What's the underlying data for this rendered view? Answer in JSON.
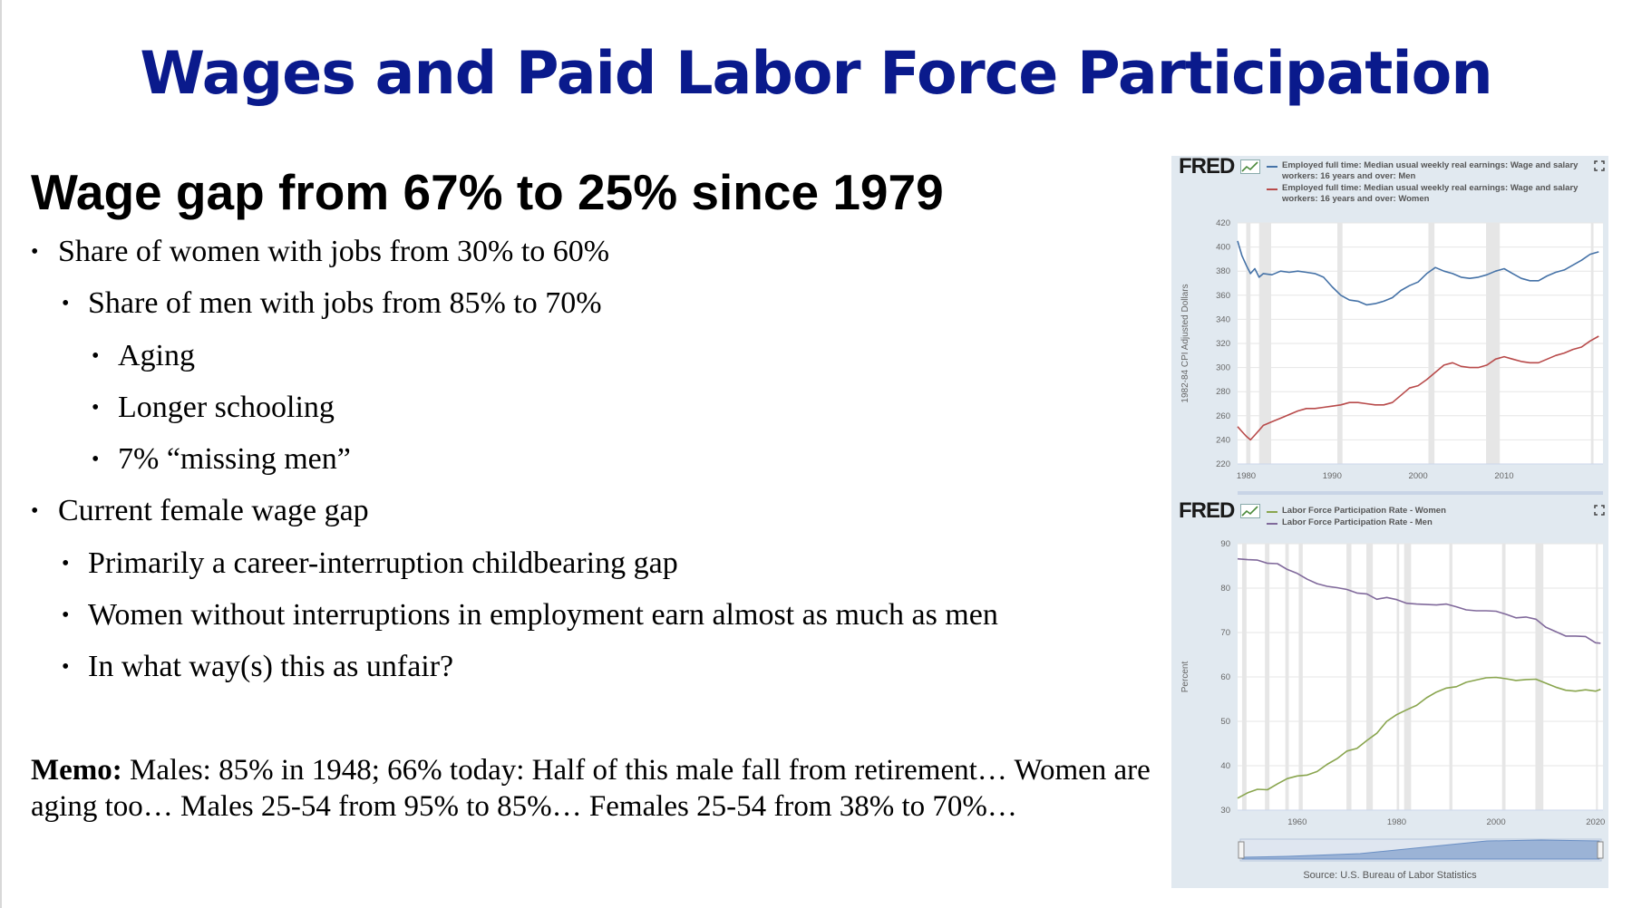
{
  "slide": {
    "title": "Wages and Paid Labor Force Participation",
    "subtitle": "Wage gap from 67% to 25% since 1979",
    "bullets": [
      {
        "level": 0,
        "text": "Share of women with jobs from 30% to 60%"
      },
      {
        "level": 1,
        "text": "Share of men with jobs from 85% to 70%"
      },
      {
        "level": 2,
        "text": "Aging"
      },
      {
        "level": 2,
        "text": "Longer schooling"
      },
      {
        "level": 2,
        "text": "7% “missing men”"
      },
      {
        "level": 0,
        "text": "Current female wage gap"
      },
      {
        "level": 1,
        "text": "Primarily a career-interruption childbearing gap"
      },
      {
        "level": 1,
        "text": "Women without interruptions in employment earn almost as much as men"
      },
      {
        "level": 1,
        "text": "In what way(s) this as unfair?"
      }
    ],
    "bullet_glyph": "•",
    "memo_label": "Memo:",
    "memo_text": " Males: 85% in 1948; 66% today: Half of this male fall from retirement… Women are aging too… Males 25-54 from 95% to 85%… Females 25-54 from 38% to 70%…"
  },
  "fred": {
    "logo": "FRED",
    "source": "Source: U.S. Bureau of Labor Statistics",
    "icons": [
      "fred-chart-icon",
      "expand-icon"
    ]
  },
  "colors": {
    "title": "#0a1a8c",
    "panel_bg": "#e1e9f0",
    "recession": "#e6e6e6",
    "men_earnings": "#4572a7",
    "women_earnings": "#b84a4a",
    "women_lfpr": "#89a54e",
    "men_lfpr": "#80699b"
  },
  "chart_data": [
    {
      "type": "line",
      "title": "",
      "xlabel": "",
      "ylabel": "1982-84 CPI Adjusted Dollars",
      "xlim": [
        1979,
        2021.5
      ],
      "ylim": [
        220,
        420
      ],
      "xticks": [
        1980,
        1990,
        2000,
        2010
      ],
      "yticks": [
        220,
        240,
        260,
        280,
        300,
        320,
        340,
        360,
        380,
        400,
        420
      ],
      "grid": true,
      "legend": "top",
      "recessions": [
        [
          1980.0,
          1980.5
        ],
        [
          1981.5,
          1982.9
        ],
        [
          1990.6,
          1991.2
        ],
        [
          2001.2,
          2001.9
        ],
        [
          2007.9,
          2009.5
        ],
        [
          2020.1,
          2020.4
        ]
      ],
      "series": [
        {
          "name": "Employed full time: Median usual weekly real earnings: Wage and salary workers: 16 years and over: Men",
          "x": [
            1979.0,
            1979.5,
            1980.0,
            1980.5,
            1981.0,
            1981.5,
            1982.0,
            1983.0,
            1984.0,
            1985.0,
            1986.0,
            1987.0,
            1988.0,
            1989.0,
            1990.0,
            1991.0,
            1992.0,
            1993.0,
            1994.0,
            1995.0,
            1996.0,
            1997.0,
            1998.0,
            1999.0,
            2000.0,
            2001.0,
            2002.0,
            2003.0,
            2004.0,
            2005.0,
            2006.0,
            2007.0,
            2008.0,
            2009.0,
            2010.0,
            2011.0,
            2012.0,
            2013.0,
            2014.0,
            2015.0,
            2016.0,
            2017.0,
            2018.0,
            2019.0,
            2020.0,
            2021.0
          ],
          "y": [
            405,
            393,
            385,
            378,
            382,
            375,
            378,
            377,
            380,
            379,
            380,
            379,
            378,
            375,
            367,
            360,
            356,
            355,
            352,
            353,
            355,
            358,
            364,
            368,
            371,
            378,
            383,
            380,
            378,
            375,
            374,
            375,
            377,
            380,
            382,
            378,
            374,
            372,
            372,
            376,
            379,
            381,
            385,
            389,
            394,
            396
          ]
        },
        {
          "name": "Employed full time: Median usual weekly real earnings: Wage and salary workers: 16 years and over: Women",
          "x": [
            1979.0,
            1979.5,
            1980.0,
            1980.5,
            1981.0,
            1981.5,
            1982.0,
            1983.0,
            1984.0,
            1985.0,
            1986.0,
            1987.0,
            1988.0,
            1989.0,
            1990.0,
            1991.0,
            1992.0,
            1993.0,
            1994.0,
            1995.0,
            1996.0,
            1997.0,
            1998.0,
            1999.0,
            2000.0,
            2001.0,
            2002.0,
            2003.0,
            2004.0,
            2005.0,
            2006.0,
            2007.0,
            2008.0,
            2009.0,
            2010.0,
            2011.0,
            2012.0,
            2013.0,
            2014.0,
            2015.0,
            2016.0,
            2017.0,
            2018.0,
            2019.0,
            2020.0,
            2021.0
          ],
          "y": [
            251,
            247,
            243,
            240,
            244,
            248,
            252,
            255,
            258,
            261,
            264,
            266,
            266,
            267,
            268,
            269,
            271,
            271,
            270,
            269,
            269,
            271,
            277,
            283,
            285,
            290,
            296,
            302,
            304,
            301,
            300,
            300,
            302,
            307,
            309,
            307,
            305,
            304,
            304,
            307,
            310,
            312,
            315,
            317,
            322,
            326
          ]
        }
      ]
    },
    {
      "type": "line",
      "title": "",
      "xlabel": "",
      "ylabel": "Percent",
      "xlim": [
        1948,
        2021.5
      ],
      "ylim": [
        30,
        90
      ],
      "xticks": [
        1960,
        1980,
        2000,
        2020
      ],
      "yticks": [
        30,
        40,
        50,
        60,
        70,
        80,
        90
      ],
      "grid": true,
      "legend": "top",
      "recessions": [
        [
          1948.9,
          1949.8
        ],
        [
          1953.5,
          1954.4
        ],
        [
          1957.6,
          1958.3
        ],
        [
          1960.3,
          1961.1
        ],
        [
          1969.9,
          1970.9
        ],
        [
          1973.9,
          1975.2
        ],
        [
          1980.0,
          1980.5
        ],
        [
          1981.5,
          1982.9
        ],
        [
          1990.6,
          1991.2
        ],
        [
          2001.2,
          2001.9
        ],
        [
          2007.9,
          2009.5
        ],
        [
          2020.1,
          2020.4
        ]
      ],
      "series": [
        {
          "name": "Labor Force Participation Rate - Women",
          "x": [
            1948,
            1950,
            1952,
            1954,
            1956,
            1958,
            1960,
            1962,
            1964,
            1966,
            1968,
            1970,
            1972,
            1974,
            1976,
            1978,
            1980,
            1982,
            1984,
            1986,
            1988,
            1990,
            1992,
            1994,
            1996,
            1998,
            2000,
            2002,
            2004,
            2006,
            2008,
            2010,
            2012,
            2014,
            2016,
            2018,
            2020,
            2021
          ],
          "y": [
            32.7,
            33.9,
            34.7,
            34.6,
            35.9,
            37.1,
            37.7,
            37.9,
            38.7,
            40.3,
            41.6,
            43.3,
            43.9,
            45.7,
            47.3,
            50.0,
            51.5,
            52.6,
            53.6,
            55.3,
            56.6,
            57.5,
            57.8,
            58.8,
            59.3,
            59.8,
            59.9,
            59.6,
            59.2,
            59.4,
            59.5,
            58.6,
            57.7,
            57.0,
            56.8,
            57.1,
            56.8,
            57.2
          ]
        },
        {
          "name": "Labor Force Participation Rate - Men",
          "x": [
            1948,
            1950,
            1952,
            1954,
            1956,
            1958,
            1960,
            1962,
            1964,
            1966,
            1968,
            1970,
            1972,
            1974,
            1976,
            1978,
            1980,
            1982,
            1984,
            1986,
            1988,
            1990,
            1992,
            1994,
            1996,
            1998,
            2000,
            2002,
            2004,
            2006,
            2008,
            2010,
            2012,
            2014,
            2016,
            2018,
            2020,
            2021
          ],
          "y": [
            86.6,
            86.4,
            86.3,
            85.6,
            85.5,
            84.2,
            83.3,
            82.0,
            81.0,
            80.4,
            80.1,
            79.7,
            78.9,
            78.7,
            77.5,
            77.9,
            77.4,
            76.6,
            76.4,
            76.3,
            76.2,
            76.4,
            75.8,
            75.1,
            74.9,
            74.9,
            74.8,
            74.1,
            73.3,
            73.5,
            73.0,
            71.2,
            70.2,
            69.2,
            69.2,
            69.1,
            67.7,
            67.6
          ]
        }
      ]
    }
  ]
}
